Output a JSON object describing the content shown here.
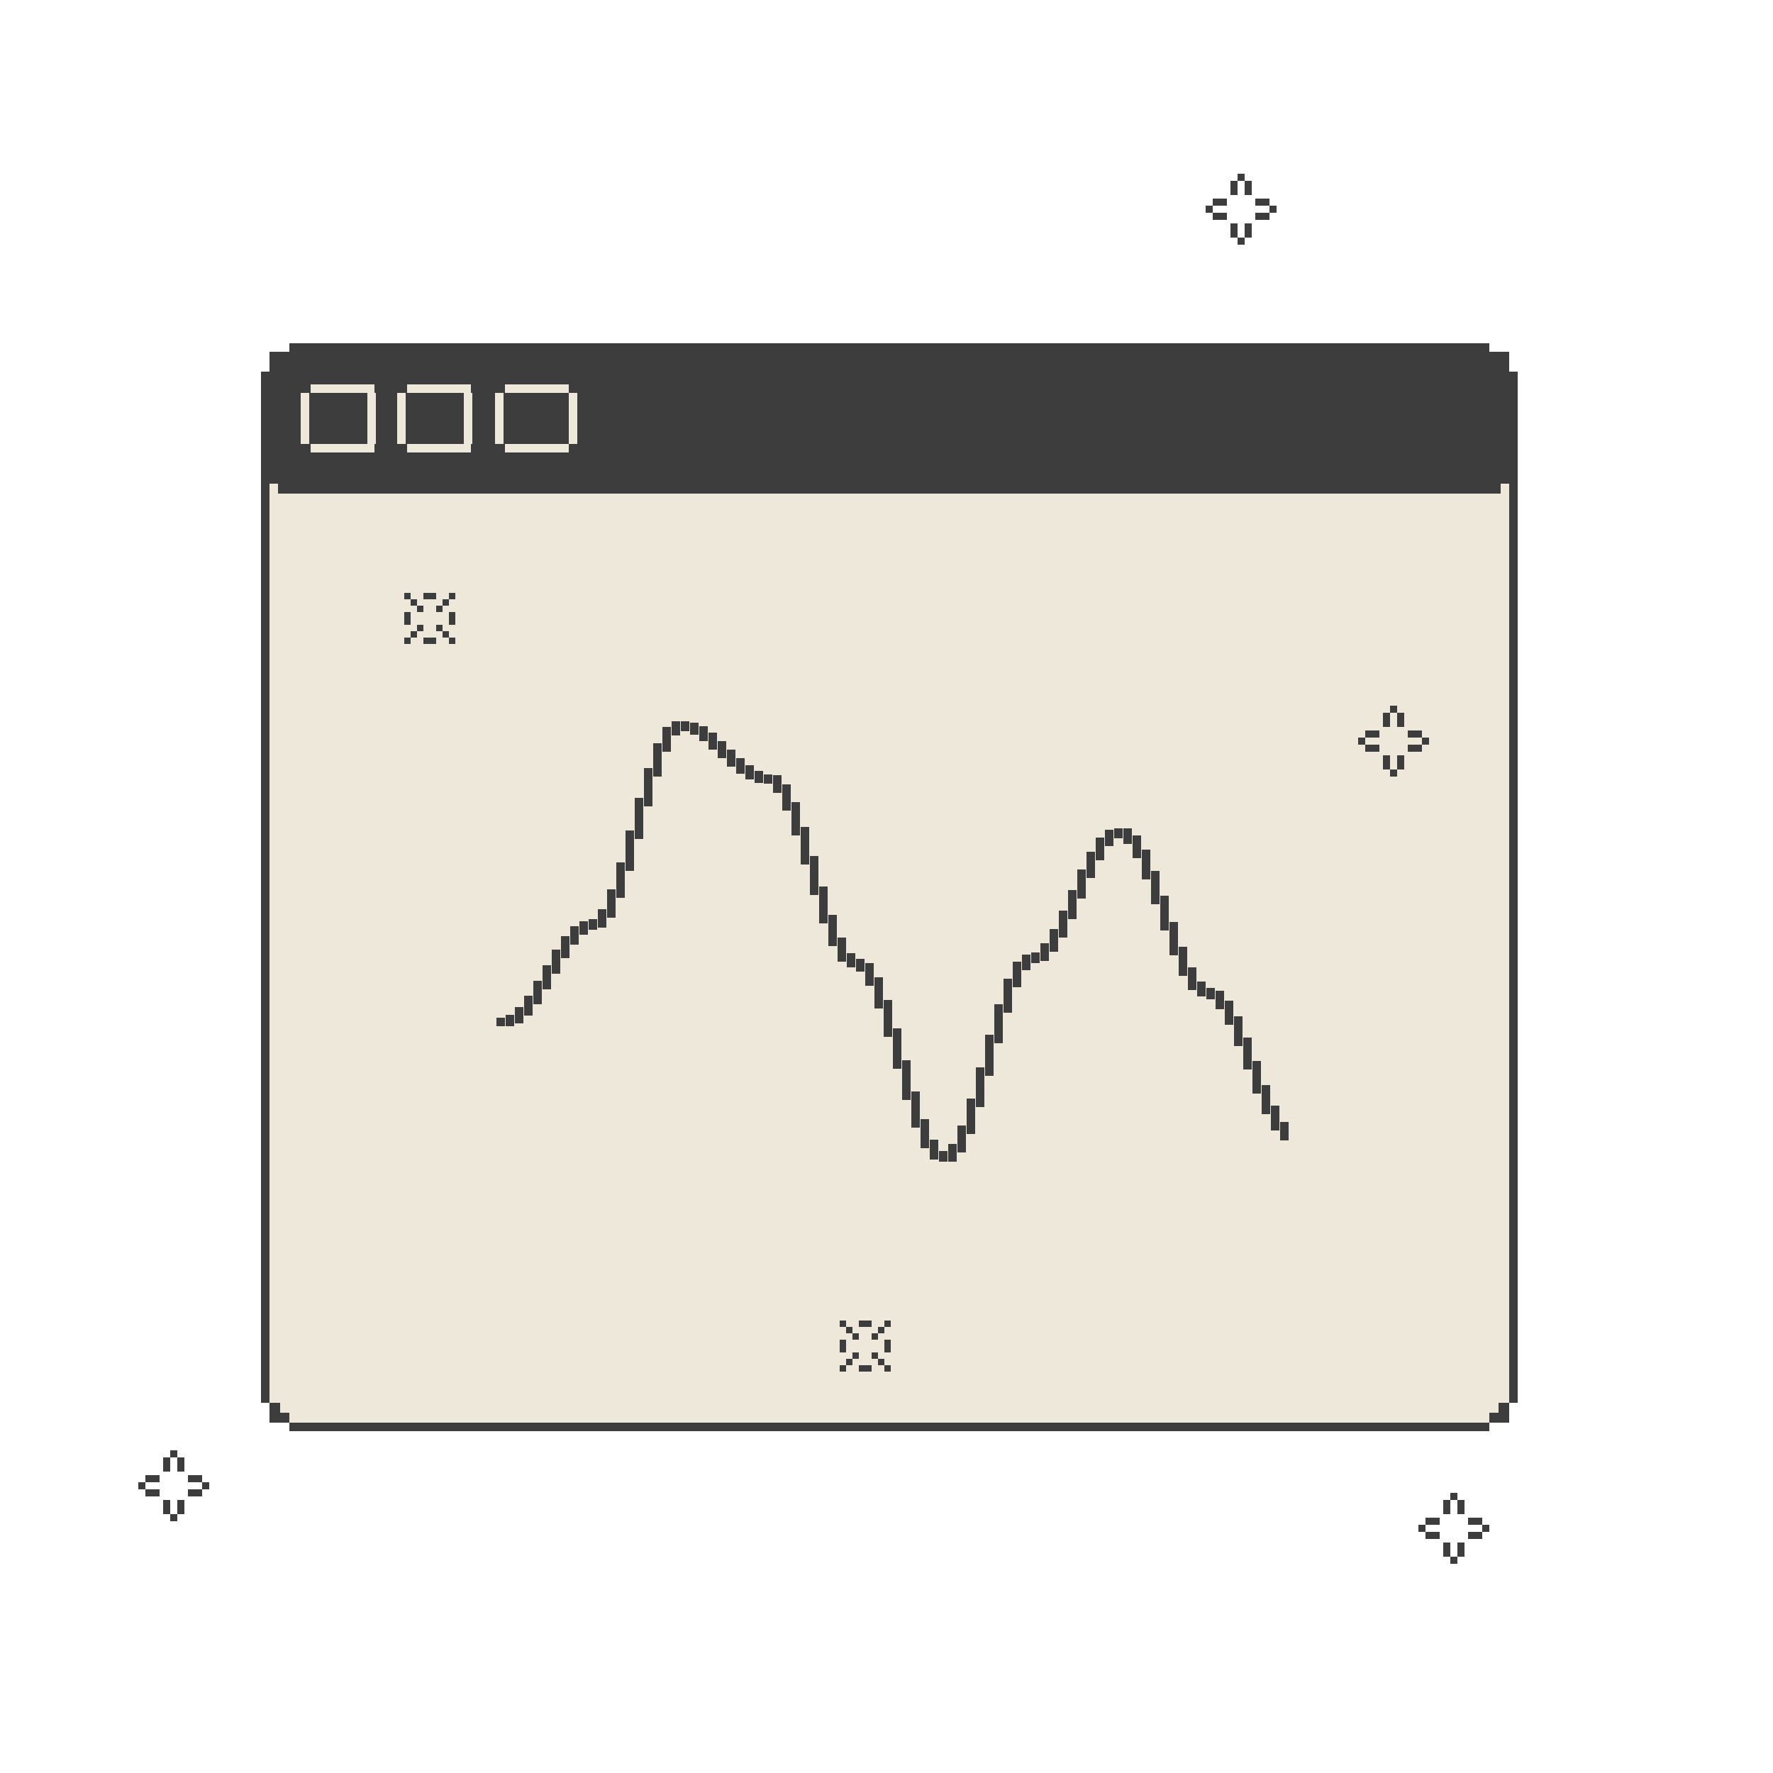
{
  "colors": {
    "ink": "#3d3d3d",
    "cream": "#ede8d9",
    "background": "#ffffff"
  },
  "window": {
    "title_bar_controls": [
      "window-control-1",
      "window-control-2",
      "window-control-3"
    ]
  },
  "decorations": {
    "outer_icon": "sparkle-icon",
    "inner_star_icon": "sparkle-icon",
    "inner_cross_icon": "cross-sparkle-icon"
  },
  "chart_data": {
    "type": "line",
    "title": "",
    "xlabel": "",
    "ylabel": "",
    "grid": false,
    "axes_visible": false,
    "series": [
      {
        "values": [
          0.32,
          0.52,
          0.93,
          0.82,
          0.44,
          0.04,
          0.45,
          0.71,
          0.38,
          0.08
        ]
      }
    ]
  }
}
